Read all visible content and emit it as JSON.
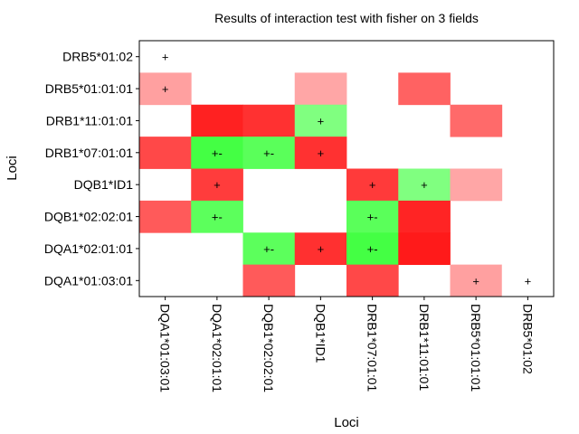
{
  "chart_data": {
    "type": "heatmap",
    "title": "Results of interaction test with fisher on 3 fields",
    "xlabel": "Loci",
    "ylabel": "Loci",
    "x_categories": [
      "DQA1*01:03:01",
      "DQA1*02:01:01",
      "DQB1*02:02:01",
      "DQB1*ID1",
      "DRB1*07:01:01",
      "DRB1*11:01:01",
      "DRB5*01:01:01",
      "DRB5*01:02"
    ],
    "y_categories": [
      "DRB5*01:02",
      "DRB5*01:01:01",
      "DRB1*11:01:01",
      "DRB1*07:01:01",
      "DQB1*ID1",
      "DQB1*02:02:01",
      "DQA1*02:01:01",
      "DQA1*01:03:01"
    ],
    "cells": [
      {
        "row": 0,
        "col": 0,
        "color": "#ffffff",
        "label": "+"
      },
      {
        "row": 1,
        "col": 0,
        "color": "#ffa0a0",
        "label": "+"
      },
      {
        "row": 1,
        "col": 3,
        "color": "#ffa6a6",
        "label": ""
      },
      {
        "row": 1,
        "col": 5,
        "color": "#ff6262",
        "label": ""
      },
      {
        "row": 2,
        "col": 1,
        "color": "#ff2121",
        "label": ""
      },
      {
        "row": 2,
        "col": 2,
        "color": "#ff3131",
        "label": ""
      },
      {
        "row": 2,
        "col": 3,
        "color": "#80ff80",
        "label": "+"
      },
      {
        "row": 2,
        "col": 6,
        "color": "#ff6a6a",
        "label": ""
      },
      {
        "row": 3,
        "col": 0,
        "color": "#ff4848",
        "label": ""
      },
      {
        "row": 3,
        "col": 1,
        "color": "#44ff44",
        "label": "+-"
      },
      {
        "row": 3,
        "col": 2,
        "color": "#5aff5a",
        "label": "+-"
      },
      {
        "row": 3,
        "col": 3,
        "color": "#ff3131",
        "label": "+"
      },
      {
        "row": 4,
        "col": 1,
        "color": "#ff3c3c",
        "label": "+"
      },
      {
        "row": 4,
        "col": 4,
        "color": "#ff3a3a",
        "label": "+"
      },
      {
        "row": 4,
        "col": 5,
        "color": "#80ff80",
        "label": "+"
      },
      {
        "row": 4,
        "col": 6,
        "color": "#ffa6a6",
        "label": ""
      },
      {
        "row": 5,
        "col": 0,
        "color": "#ff5a5a",
        "label": ""
      },
      {
        "row": 5,
        "col": 1,
        "color": "#5cff5c",
        "label": "+-"
      },
      {
        "row": 5,
        "col": 4,
        "color": "#5aff5a",
        "label": "+-"
      },
      {
        "row": 5,
        "col": 5,
        "color": "#ff2424",
        "label": ""
      },
      {
        "row": 6,
        "col": 2,
        "color": "#5cff5c",
        "label": "+-"
      },
      {
        "row": 6,
        "col": 3,
        "color": "#ff3030",
        "label": "+"
      },
      {
        "row": 6,
        "col": 4,
        "color": "#44ff44",
        "label": "+-"
      },
      {
        "row": 6,
        "col": 5,
        "color": "#ff1a1a",
        "label": ""
      },
      {
        "row": 7,
        "col": 2,
        "color": "#ff5a5a",
        "label": ""
      },
      {
        "row": 7,
        "col": 4,
        "color": "#ff4848",
        "label": ""
      },
      {
        "row": 7,
        "col": 6,
        "color": "#ffa0a0",
        "label": "+"
      },
      {
        "row": 7,
        "col": 7,
        "color": "#ffffff",
        "label": "+"
      }
    ],
    "grid": false,
    "legend": "none"
  }
}
